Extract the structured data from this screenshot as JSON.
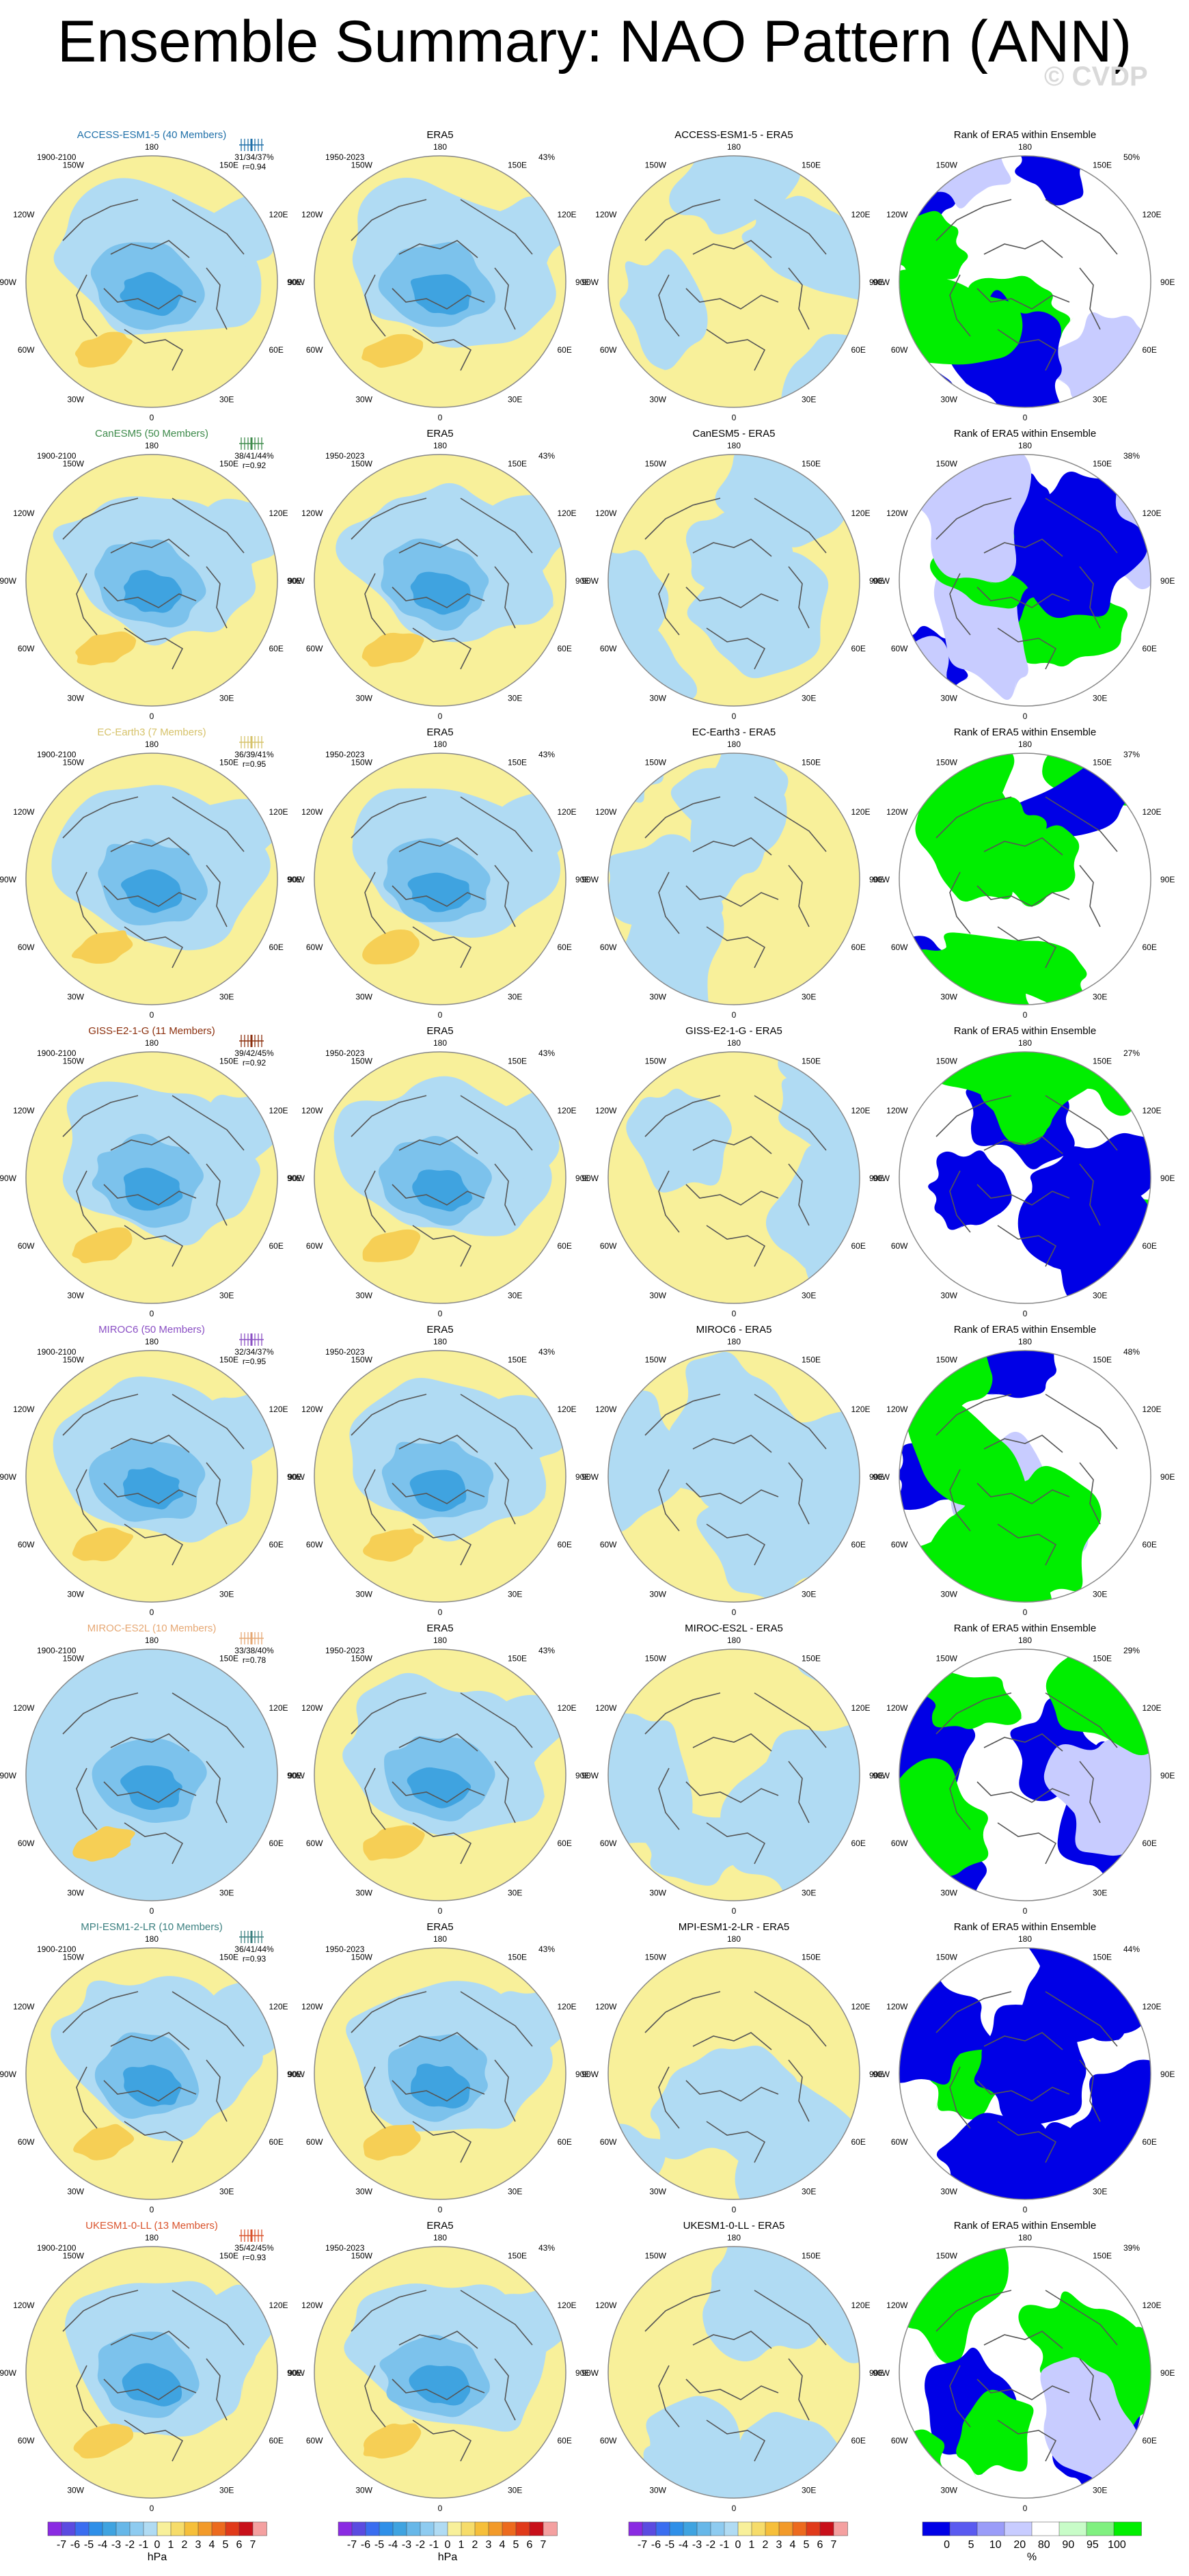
{
  "title": "Ensemble Summary: NAO Pattern (ANN)",
  "watermark": "© CVDP",
  "colors": {
    "pos_light": "#f8f09a",
    "neg_light": "#b0dbf3",
    "neg_mid": "#7cc2ec",
    "neg_strong": "#3fa3e0",
    "pos_mid": "#f6cf55",
    "rank_blue": "#0000e6",
    "rank_green": "#00ee00",
    "rank_lightblue": "#c8ccff",
    "rank_white": "#ffffff",
    "coast": "#555555",
    "frame": "#888888"
  },
  "chart_data": {
    "type": "heatmap",
    "description_units": "hPa",
    "column_headers": {
      "era5": "ERA5",
      "rank": "Rank of ERA5 within Ensemble"
    },
    "periods": {
      "model": "1900-2100",
      "era5": "1950-2023"
    },
    "era5_pct": "43%",
    "longitude_labels": [
      "180",
      "150E",
      "120E",
      "90E",
      "60E",
      "30E",
      "0",
      "30W",
      "60W",
      "90W",
      "120W",
      "150W"
    ],
    "rows": [
      {
        "model": "ACCESS-ESM1-5 (40 Members)",
        "model_color": "#1e6fa8",
        "short": "ACCESS-ESM1-5 - ERA5",
        "stats1": "31/34/37%",
        "stats2": "r=0.94",
        "rank_pct": "50%",
        "box_color": "#1e6fa8"
      },
      {
        "model": "CanESM5 (50 Members)",
        "model_color": "#3d8a4a",
        "short": "CanESM5 - ERA5",
        "stats1": "38/41/44%",
        "stats2": "r=0.92",
        "rank_pct": "38%",
        "box_color": "#3d8a4a"
      },
      {
        "model": "EC-Earth3 (7 Members)",
        "model_color": "#d6c26a",
        "short": "EC-Earth3 - ERA5",
        "stats1": "36/39/41%",
        "stats2": "r=0.95",
        "rank_pct": "37%",
        "box_color": "#d6c26a"
      },
      {
        "model": "GISS-E2-1-G (11 Members)",
        "model_color": "#8b2e0c",
        "short": "GISS-E2-1-G - ERA5",
        "stats1": "39/42/45%",
        "stats2": "r=0.92",
        "rank_pct": "27%",
        "box_color": "#8b2e0c"
      },
      {
        "model": "MIROC6 (50 Members)",
        "model_color": "#8a4fc4",
        "short": "MIROC6 - ERA5",
        "stats1": "32/34/37%",
        "stats2": "r=0.95",
        "rank_pct": "48%",
        "box_color": "#8a4fc4"
      },
      {
        "model": "MIROC-ES2L (10 Members)",
        "model_color": "#e6a874",
        "short": "MIROC-ES2L - ERA5",
        "stats1": "33/38/40%",
        "stats2": "r=0.78",
        "rank_pct": "29%",
        "box_color": "#e6a874"
      },
      {
        "model": "MPI-ESM1-2-LR (10 Members)",
        "model_color": "#3a7f7f",
        "short": "MPI-ESM1-2-LR - ERA5",
        "stats1": "36/41/44%",
        "stats2": "r=0.93",
        "rank_pct": "44%",
        "box_color": "#3a7f7f"
      },
      {
        "model": "UKESM1-0-LL (13 Members)",
        "model_color": "#d9532c",
        "short": "UKESM1-0-LL - ERA5",
        "stats1": "35/42/45%",
        "stats2": "r=0.93",
        "rank_pct": "39%",
        "box_color": "#d9532c"
      }
    ],
    "colorbars": [
      {
        "ticks": [
          "-7",
          "-6",
          "-5",
          "-4",
          "-3",
          "-2",
          "-1",
          "0",
          "1",
          "2",
          "3",
          "4",
          "5",
          "6",
          "7"
        ],
        "unit": "hPa",
        "colors": [
          "#8a2be2",
          "#5b4be0",
          "#3a6df0",
          "#2f8fe8",
          "#3fa3e0",
          "#67b7e8",
          "#8ecbf0",
          "#b0dbf3",
          "#f8f09a",
          "#f6dc6a",
          "#f6bf3a",
          "#f29a2a",
          "#ec6a1e",
          "#e03a1a",
          "#c8101a",
          "#f4a0a0"
        ]
      },
      {
        "ticks": [
          "-7",
          "-6",
          "-5",
          "-4",
          "-3",
          "-2",
          "-1",
          "0",
          "1",
          "2",
          "3",
          "4",
          "5",
          "6",
          "7"
        ],
        "unit": "hPa",
        "colors": [
          "#8a2be2",
          "#5b4be0",
          "#3a6df0",
          "#2f8fe8",
          "#3fa3e0",
          "#67b7e8",
          "#8ecbf0",
          "#b0dbf3",
          "#f8f09a",
          "#f6dc6a",
          "#f6bf3a",
          "#f29a2a",
          "#ec6a1e",
          "#e03a1a",
          "#c8101a",
          "#f4a0a0"
        ]
      },
      {
        "ticks": [
          "-7",
          "-6",
          "-5",
          "-4",
          "-3",
          "-2",
          "-1",
          "0",
          "1",
          "2",
          "3",
          "4",
          "5",
          "6",
          "7"
        ],
        "unit": "",
        "colors": [
          "#8a2be2",
          "#5b4be0",
          "#3a6df0",
          "#2f8fe8",
          "#3fa3e0",
          "#67b7e8",
          "#8ecbf0",
          "#b0dbf3",
          "#f8f09a",
          "#f6dc6a",
          "#f6bf3a",
          "#f29a2a",
          "#ec6a1e",
          "#e03a1a",
          "#c8101a",
          "#f4a0a0"
        ]
      },
      {
        "ticks": [
          "0",
          "5",
          "10",
          "20",
          "80",
          "90",
          "95",
          "100"
        ],
        "unit": "%",
        "colors": [
          "#0000e6",
          "#5a5af0",
          "#9a9cf8",
          "#c8ccff",
          "#ffffff",
          "#c8fcc8",
          "#80f080",
          "#00ee00"
        ]
      }
    ]
  }
}
